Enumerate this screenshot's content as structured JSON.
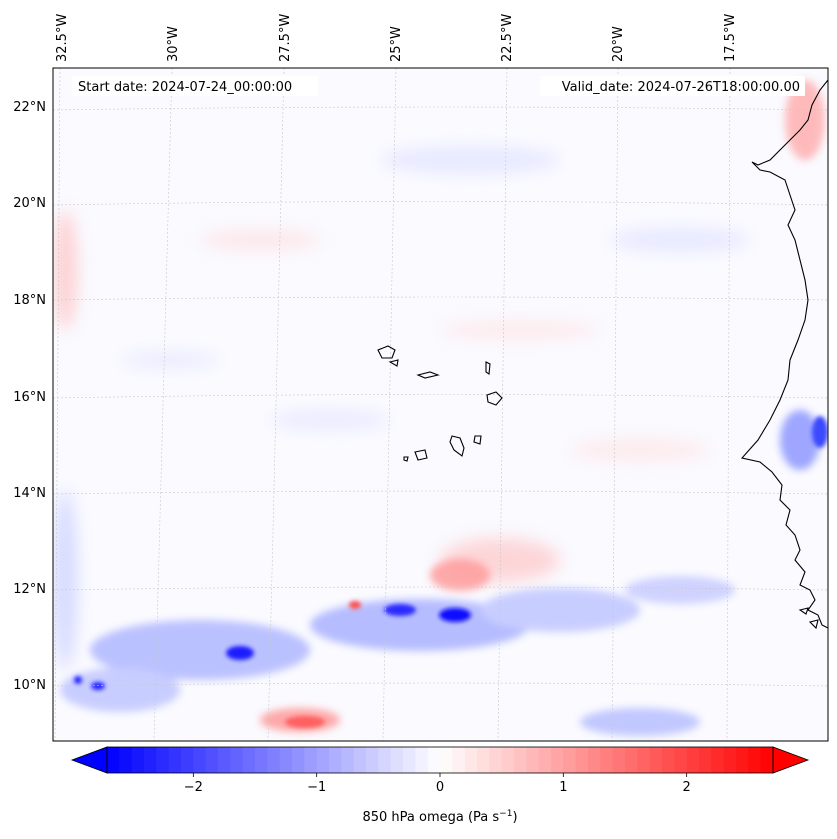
{
  "map": {
    "start_label": "Start date: 2024-07-24_00:00:00",
    "valid_label": "Valid_date: 2024-07-26T18:00:00.00",
    "lon_labels": [
      "32.5°W",
      "30°W",
      "27.5°W",
      "25°W",
      "22.5°W",
      "20°W",
      "17.5°W"
    ],
    "lat_labels": [
      "22°N",
      "20°N",
      "18°N",
      "16°N",
      "14°N",
      "12°N",
      "10°N"
    ],
    "colors": {
      "negative": "#0000ff",
      "positive": "#ff0000",
      "coastline": "#000000",
      "gridline": "#bbbbbb"
    }
  },
  "colorbar": {
    "label": "850 hPa omega (Pa s",
    "label_exp": "−1",
    "label_close": ")",
    "min": -2.7,
    "max": 2.7,
    "ticks": [
      "−2",
      "−1",
      "0",
      "1",
      "2"
    ],
    "tick_values": [
      -2,
      -1,
      0,
      1,
      2
    ]
  }
}
